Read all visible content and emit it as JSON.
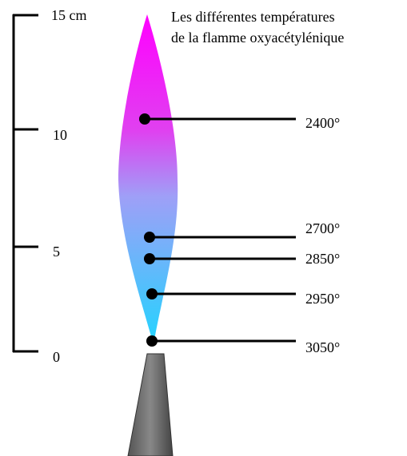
{
  "title": {
    "lines": [
      "Les différentes températures",
      "de la flamme oxyacétylénique"
    ]
  },
  "scale": {
    "labels": [
      "15 cm",
      "10",
      "5",
      "0"
    ]
  },
  "temperatures": {
    "labels": [
      "2400°",
      "2700°",
      "2850°",
      "2950°",
      "3050°"
    ]
  }
}
